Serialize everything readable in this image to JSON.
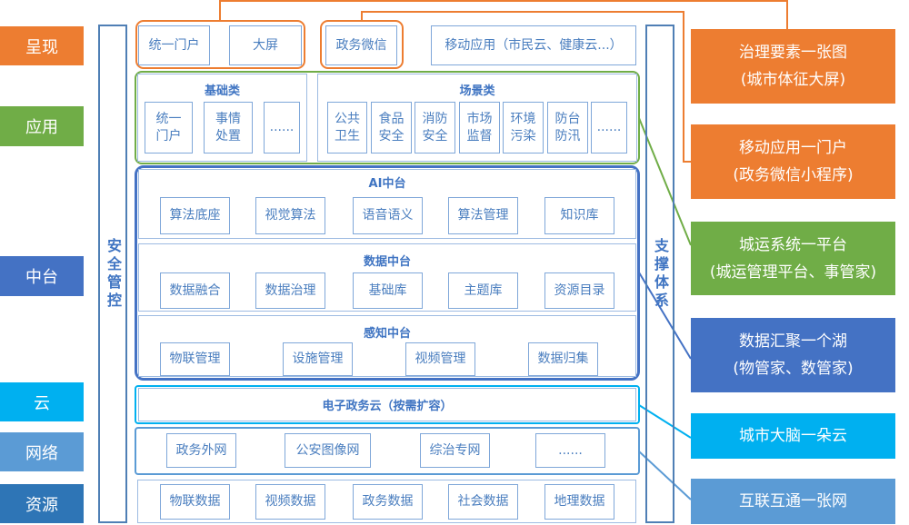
{
  "layers": {
    "present": "呈现",
    "app": "应用",
    "middle": "中台",
    "cloud": "云",
    "network": "网络",
    "resource": "资源"
  },
  "left_bar": "安全管控",
  "right_bar": "支撑体系",
  "present": {
    "portal": "统一门户",
    "screen": "大屏",
    "wechat": "政务微信",
    "mobile": "移动应用（市民云、健康云...）"
  },
  "app": {
    "basic_title": "基础类",
    "basic": [
      "统一门户",
      "事情处置",
      "......"
    ],
    "scene_title": "场景类",
    "scene": [
      "公共卫生",
      "食品安全",
      "消防安全",
      "市场监督",
      "环境污染",
      "防台防汛",
      "......"
    ]
  },
  "ai": {
    "title": "AI中台",
    "items": [
      "算法底座",
      "视觉算法",
      "语音语义",
      "算法管理",
      "知识库"
    ]
  },
  "data": {
    "title": "数据中台",
    "items": [
      "数据融合",
      "数据治理",
      "基础库",
      "主题库",
      "资源目录"
    ]
  },
  "sense": {
    "title": "感知中台",
    "items": [
      "物联管理",
      "设施管理",
      "视频管理",
      "数据归集"
    ]
  },
  "cloud": "电子政务云（按需扩容）",
  "network": [
    "政务外网",
    "公安图像网",
    "综治专网",
    "......"
  ],
  "resource": [
    "物联数据",
    "视频数据",
    "政务数据",
    "社会数据",
    "地理数据"
  ],
  "right": [
    {
      "l1": "治理要素一张图",
      "l2": "(城市体征大屏)",
      "color": "#ED7D31"
    },
    {
      "l1": "移动应用一门户",
      "l2": "(政务微信小程序)",
      "color": "#ED7D31"
    },
    {
      "l1": "城运系统一平台",
      "l2": "(城运管理平台、事管家)",
      "color": "#70AD47"
    },
    {
      "l1": "数据汇聚一个湖",
      "l2": "(物管家、数管家)",
      "color": "#4472C4"
    },
    {
      "l1": "城市大脑一朵云",
      "l2": "",
      "color": "#00B0F0"
    },
    {
      "l1": "互联互通一张网",
      "l2": "",
      "color": "#5B9BD5"
    }
  ]
}
